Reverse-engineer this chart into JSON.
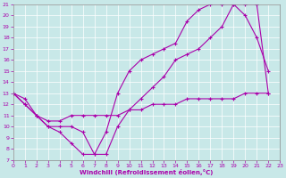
{
  "background_color": "#c8e8e8",
  "line_color": "#aa00aa",
  "xlim": [
    0,
    23
  ],
  "ylim": [
    7,
    21
  ],
  "xticks": [
    0,
    1,
    2,
    3,
    4,
    5,
    6,
    7,
    8,
    9,
    10,
    11,
    12,
    13,
    14,
    15,
    16,
    17,
    18,
    19,
    20,
    21,
    22,
    23
  ],
  "yticks": [
    7,
    8,
    9,
    10,
    11,
    12,
    13,
    14,
    15,
    16,
    17,
    18,
    19,
    20,
    21
  ],
  "xlabel": "Windchill (Refroidissement éolien,°C)",
  "line1_x": [
    0,
    1,
    2,
    3,
    4,
    5,
    6,
    7,
    8,
    9,
    10,
    11,
    12,
    13,
    14,
    15,
    16,
    17,
    18,
    19,
    20,
    21,
    22
  ],
  "line1_y": [
    13,
    12.5,
    11,
    10,
    9.5,
    8.5,
    7.5,
    7.5,
    9.5,
    13,
    15,
    16,
    16.5,
    17,
    17.5,
    19.5,
    20.5,
    21,
    21,
    21,
    20,
    18,
    15
  ],
  "line2_x": [
    0,
    1,
    2,
    3,
    4,
    5,
    6,
    7,
    8,
    9,
    10,
    11,
    12,
    13,
    14,
    15,
    16,
    17,
    18,
    19,
    20,
    21,
    22
  ],
  "line2_y": [
    13,
    12,
    11,
    10,
    10,
    10,
    9.5,
    7.5,
    7.5,
    10,
    11.5,
    12.5,
    13.5,
    14.5,
    16,
    16.5,
    17,
    18,
    19,
    21,
    21,
    21,
    13
  ],
  "line3_x": [
    0,
    1,
    2,
    3,
    4,
    5,
    6,
    7,
    8,
    9,
    10,
    11,
    12,
    13,
    14,
    15,
    16,
    17,
    18,
    19,
    20,
    21,
    22
  ],
  "line3_y": [
    13,
    12,
    11,
    10.5,
    10.5,
    11,
    11,
    11,
    11,
    11,
    11.5,
    11.5,
    12,
    12,
    12,
    12.5,
    12.5,
    12.5,
    12.5,
    12.5,
    13,
    13,
    13
  ]
}
